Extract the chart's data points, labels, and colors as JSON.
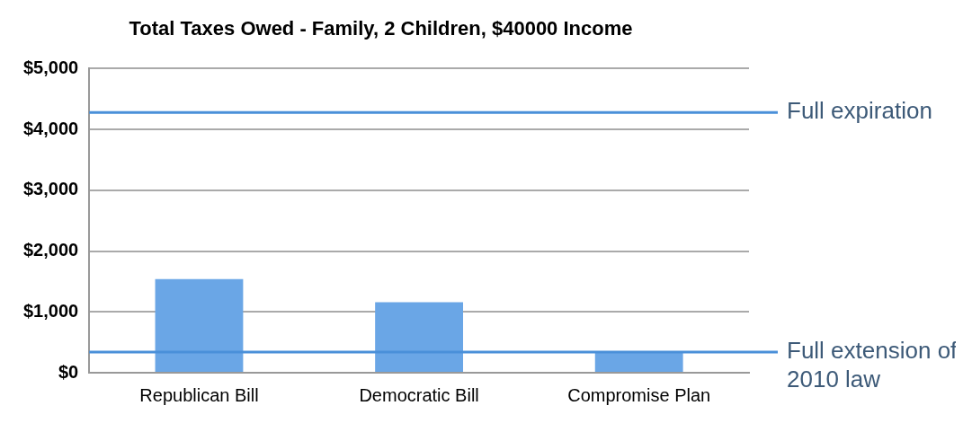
{
  "chart_data": {
    "type": "bar",
    "title": "Total Taxes Owed - Family, 2 Children, $40000 Income",
    "categories": [
      "Republican Bill",
      "Democratic Bill",
      "Compromise Plan"
    ],
    "values": [
      1540,
      1160,
      330
    ],
    "color": "#6aa6e6",
    "ylim": [
      0,
      5000
    ],
    "yticks": [
      {
        "value": 0,
        "label": "$0"
      },
      {
        "value": 1000,
        "label": "$1,000"
      },
      {
        "value": 2000,
        "label": "$2,000"
      },
      {
        "value": 3000,
        "label": "$3,000"
      },
      {
        "value": 4000,
        "label": "$4,000"
      },
      {
        "value": 5000,
        "label": "$5,000"
      }
    ],
    "grid": "y",
    "ref_lines": [
      {
        "axis": "y",
        "value": 4280,
        "label": "Full expiration",
        "color": "#4a90d9"
      },
      {
        "axis": "y",
        "value": 340,
        "label": "Full extension of 2010 law",
        "color": "#4a90d9"
      }
    ]
  }
}
